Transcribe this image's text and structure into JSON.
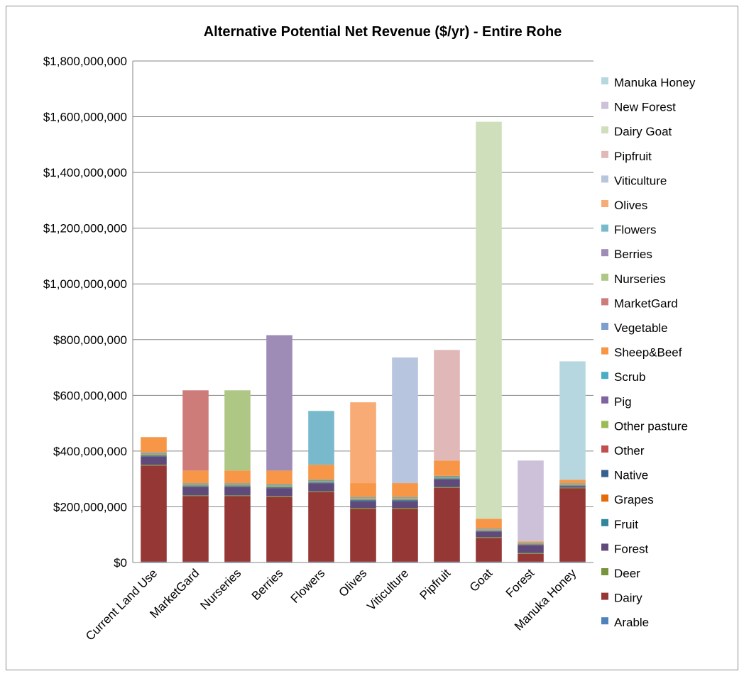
{
  "chart_data": {
    "type": "bar",
    "stacked": true,
    "title": "Alternative Potential Net Revenue ($/yr) - Entire Rohe",
    "xlabel": "",
    "ylabel": "",
    "ylim": [
      0,
      1800000000
    ],
    "yticks": [
      0,
      200000000,
      400000000,
      600000000,
      800000000,
      1000000000,
      1200000000,
      1400000000,
      1600000000,
      1800000000
    ],
    "ytick_labels": [
      "$0",
      "$200,000,000",
      "$400,000,000",
      "$600,000,000",
      "$800,000,000",
      "$1,000,000,000",
      "$1,200,000,000",
      "$1,400,000,000",
      "$1,600,000,000",
      "$1,800,000,000"
    ],
    "grid": true,
    "legend_position": "right",
    "categories": [
      "Current Land Use",
      "MarketGard",
      "Nurseries",
      "Berries",
      "Flowers",
      "Olives",
      "Viticulture",
      "Pipfruit",
      "Goat",
      "Forest",
      "Manuka Honey"
    ],
    "series": [
      {
        "name": "Arable",
        "color": "#4f81bd",
        "values": [
          3000000,
          3000000,
          3000000,
          3000000,
          3000000,
          3000000,
          3000000,
          3000000,
          3000000,
          3000000,
          3000000
        ]
      },
      {
        "name": "Dairy",
        "color": "#953735",
        "values": [
          345000000,
          235000000,
          235000000,
          233000000,
          250000000,
          190000000,
          190000000,
          265000000,
          85000000,
          28000000,
          263000000
        ]
      },
      {
        "name": "Deer",
        "color": "#77933c",
        "values": [
          3000000,
          3000000,
          3000000,
          3000000,
          3000000,
          3000000,
          3000000,
          3000000,
          3000000,
          3000000,
          3000000
        ]
      },
      {
        "name": "Forest",
        "color": "#604a7b",
        "values": [
          30000000,
          30000000,
          30000000,
          28000000,
          28000000,
          25000000,
          25000000,
          27000000,
          20000000,
          28000000,
          5000000
        ]
      },
      {
        "name": "Fruit",
        "color": "#31859c",
        "values": [
          3000000,
          3000000,
          3000000,
          3000000,
          3000000,
          3000000,
          3000000,
          3000000,
          2000000,
          2000000,
          2000000
        ]
      },
      {
        "name": "Grapes",
        "color": "#e46c0a",
        "values": [
          1000000,
          1000000,
          1000000,
          1000000,
          1000000,
          1000000,
          1000000,
          1000000,
          1000000,
          1000000,
          1000000
        ]
      },
      {
        "name": "Native",
        "color": "#376092",
        "values": [
          1000000,
          1000000,
          1000000,
          1000000,
          1000000,
          1000000,
          1000000,
          1000000,
          1000000,
          1000000,
          1000000
        ]
      },
      {
        "name": "Other",
        "color": "#c0504d",
        "values": [
          1000000,
          1000000,
          1000000,
          1000000,
          1000000,
          1000000,
          1000000,
          1000000,
          1000000,
          1000000,
          1000000
        ]
      },
      {
        "name": "Other pasture",
        "color": "#9bbb59",
        "values": [
          3000000,
          3000000,
          3000000,
          3000000,
          3000000,
          3000000,
          3000000,
          3000000,
          2000000,
          2000000,
          2000000
        ]
      },
      {
        "name": "Pig",
        "color": "#8064a2",
        "values": [
          1000000,
          1000000,
          1000000,
          1000000,
          1000000,
          1000000,
          1000000,
          1000000,
          1000000,
          1000000,
          1000000
        ]
      },
      {
        "name": "Scrub",
        "color": "#4bacc6",
        "values": [
          3000000,
          3000000,
          3000000,
          3000000,
          3000000,
          3000000,
          3000000,
          3000000,
          2000000,
          2000000,
          2000000
        ]
      },
      {
        "name": "Sheep&Beef",
        "color": "#f79646",
        "values": [
          56000000,
          46000000,
          46000000,
          50000000,
          54000000,
          51000000,
          51000000,
          55000000,
          36000000,
          4000000,
          13000000
        ]
      },
      {
        "name": "Vegetable",
        "color": "#7f9ed0",
        "values": [
          0,
          0,
          0,
          0,
          0,
          0,
          0,
          0,
          0,
          0,
          0
        ]
      },
      {
        "name": "MarketGard",
        "color": "#cd7c7a",
        "values": [
          0,
          288000000,
          0,
          0,
          0,
          0,
          0,
          0,
          0,
          0,
          0
        ]
      },
      {
        "name": "Nurseries",
        "color": "#afc785",
        "values": [
          0,
          0,
          288000000,
          0,
          0,
          0,
          0,
          0,
          0,
          0,
          0
        ]
      },
      {
        "name": "Berries",
        "color": "#9e8bb6",
        "values": [
          0,
          0,
          0,
          486000000,
          0,
          0,
          0,
          0,
          0,
          0,
          0
        ]
      },
      {
        "name": "Flowers",
        "color": "#78bacc",
        "values": [
          0,
          0,
          0,
          0,
          193000000,
          0,
          0,
          0,
          0,
          0,
          0
        ]
      },
      {
        "name": "Olives",
        "color": "#f8ab74",
        "values": [
          0,
          0,
          0,
          0,
          0,
          290000000,
          0,
          0,
          0,
          0,
          0
        ]
      },
      {
        "name": "Viticulture",
        "color": "#b8c5de",
        "values": [
          0,
          0,
          0,
          0,
          0,
          0,
          451000000,
          0,
          0,
          0,
          0
        ]
      },
      {
        "name": "Pipfruit",
        "color": "#e0b8b8",
        "values": [
          0,
          0,
          0,
          0,
          0,
          0,
          0,
          397000000,
          0,
          0,
          0
        ]
      },
      {
        "name": "Dairy Goat",
        "color": "#d0dfbb",
        "values": [
          0,
          0,
          0,
          0,
          0,
          0,
          0,
          0,
          1425000000,
          0,
          0
        ]
      },
      {
        "name": "New Forest",
        "color": "#ccc1d9",
        "values": [
          0,
          0,
          0,
          0,
          0,
          0,
          0,
          0,
          0,
          290000000,
          0
        ]
      },
      {
        "name": "Manuka Honey",
        "color": "#b7d7e0",
        "values": [
          0,
          0,
          0,
          0,
          0,
          0,
          0,
          0,
          0,
          0,
          425000000
        ]
      }
    ]
  }
}
